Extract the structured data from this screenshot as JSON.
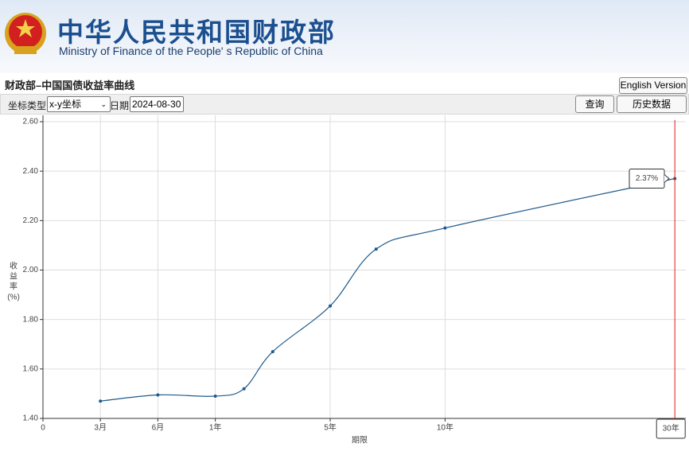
{
  "header": {
    "title": "中华人民共和国财政部",
    "subtitle": "Ministry of Finance of the People' s Republic of China"
  },
  "page_title": "财政部–中国国债收益率曲线",
  "english_button": "English Version",
  "toolbar": {
    "coord_label": "坐标类型:",
    "coord_value": "x-y坐标",
    "date_label": "日期:",
    "date_value": "2024-08-30",
    "query_button": "查询",
    "history_button": "历史数据"
  },
  "chart_data": {
    "type": "line",
    "x_label": "期限",
    "y_label": [
      "收",
      "益",
      "率",
      "(%)"
    ],
    "x": [
      0.25,
      0.5,
      1,
      2,
      3,
      5,
      7,
      10,
      30
    ],
    "series": [
      {
        "name": "收益率",
        "color": "#1f5a8c",
        "values": [
          1.47,
          1.495,
          1.49,
          1.52,
          1.67,
          1.855,
          2.085,
          2.17,
          2.37
        ]
      }
    ],
    "xlim": [
      0,
      30
    ],
    "xticks": [
      0,
      {
        "value": 0.25,
        "label": "3月"
      },
      {
        "value": 0.5,
        "label": "6月"
      },
      {
        "value": 1,
        "label": "1年"
      },
      {
        "value": 5,
        "label": "5年"
      },
      {
        "value": 10,
        "label": "10年"
      }
    ],
    "ylim": [
      1.4,
      2.6
    ],
    "yticks": [
      {
        "value": 1.4,
        "label": "1.40"
      },
      {
        "value": 1.6,
        "label": "1.60"
      },
      {
        "value": 1.8,
        "label": "1.80"
      },
      {
        "value": 2.0,
        "label": "2.00"
      },
      {
        "value": 2.2,
        "label": "2.20"
      },
      {
        "value": 2.4,
        "label": "2.40"
      },
      {
        "value": 2.6,
        "label": "2.60"
      }
    ],
    "grid": true,
    "tooltip": {
      "x_label": "30年",
      "value_label": "2.37%"
    }
  }
}
